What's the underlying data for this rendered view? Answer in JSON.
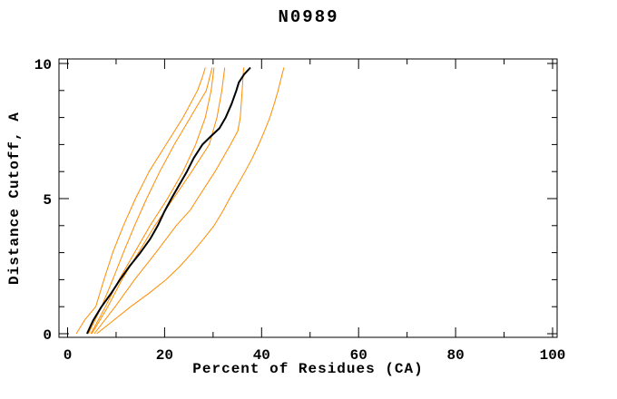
{
  "figure": {
    "title": "N0989",
    "background_color": "#ffffff",
    "axis_color": "#000000",
    "model_line_color": "#ff8c00",
    "reference_line_color": "#000000"
  },
  "chart_data": {
    "type": "line",
    "title": "N0989",
    "xlabel": "Percent of Residues (CA)",
    "ylabel": "Distance Cutoff, A",
    "xlim": [
      0,
      100
    ],
    "ylim": [
      0,
      10
    ],
    "x_major_ticks": [
      0,
      20,
      40,
      60,
      80,
      100
    ],
    "x_minor_ticks": [
      10,
      30,
      50,
      70,
      90
    ],
    "y_major_ticks": [
      0,
      5,
      10
    ],
    "y_minor_ticks": [
      1,
      2,
      3,
      4,
      6,
      7,
      8,
      9
    ],
    "grid": false,
    "legend": false,
    "point_format": [
      "distance_cutoff_A",
      "percent_residues"
    ],
    "series": [
      {
        "name": "orange-model-1",
        "color": "#ff8c00",
        "points": [
          [
            0,
            1.8
          ],
          [
            0.5,
            3.5
          ],
          [
            1,
            5.8
          ],
          [
            2,
            7.5
          ],
          [
            3,
            9.3
          ],
          [
            4,
            11.5
          ],
          [
            5,
            14.0
          ],
          [
            6,
            16.8
          ],
          [
            7,
            20.3
          ],
          [
            8,
            23.8
          ],
          [
            9,
            26.8
          ],
          [
            9.5,
            27.8
          ],
          [
            9.85,
            28.4
          ]
        ]
      },
      {
        "name": "orange-model-2",
        "color": "#ff8c00",
        "points": [
          [
            0,
            4.3
          ],
          [
            1,
            7.0
          ],
          [
            2,
            9.3
          ],
          [
            3,
            11.5
          ],
          [
            4,
            13.8
          ],
          [
            5,
            16.3
          ],
          [
            6,
            19.0
          ],
          [
            7,
            22.0
          ],
          [
            8,
            25.3
          ],
          [
            9,
            28.6
          ],
          [
            9.85,
            29.8
          ]
        ]
      },
      {
        "name": "orange-model-3",
        "color": "#ff8c00",
        "points": [
          [
            0,
            4.8
          ],
          [
            1,
            7.8
          ],
          [
            2,
            10.6
          ],
          [
            3,
            13.8
          ],
          [
            4,
            17.0
          ],
          [
            5,
            20.6
          ],
          [
            6,
            23.8
          ],
          [
            7,
            26.4
          ],
          [
            8,
            28.4
          ],
          [
            9,
            29.6
          ],
          [
            9.85,
            30.2
          ]
        ]
      },
      {
        "name": "orange-model-4",
        "color": "#ff8c00",
        "points": [
          [
            0,
            5.0
          ],
          [
            1,
            8.3
          ],
          [
            2,
            11.2
          ],
          [
            3,
            14.6
          ],
          [
            4,
            18.0
          ],
          [
            5,
            21.8
          ],
          [
            6,
            25.6
          ],
          [
            7,
            29.2
          ],
          [
            7.5,
            30.0
          ],
          [
            8,
            30.8
          ],
          [
            9,
            31.8
          ],
          [
            9.85,
            32.4
          ]
        ]
      },
      {
        "name": "orange-model-5",
        "color": "#ff8c00",
        "points": [
          [
            0,
            5.5
          ],
          [
            1,
            9.8
          ],
          [
            2,
            13.8
          ],
          [
            3,
            18.2
          ],
          [
            4,
            22.4
          ],
          [
            4.6,
            25.4
          ],
          [
            5,
            26.8
          ],
          [
            6,
            30.4
          ],
          [
            7,
            33.6
          ],
          [
            7.5,
            35.1
          ],
          [
            8,
            35.6
          ],
          [
            9,
            36.0
          ],
          [
            9.85,
            36.3
          ]
        ]
      },
      {
        "name": "orange-model-6",
        "color": "#ff8c00",
        "points": [
          [
            0,
            6.0
          ],
          [
            0.5,
            9.5
          ],
          [
            1,
            13.0
          ],
          [
            1.5,
            16.8
          ],
          [
            2,
            20.3
          ],
          [
            2.5,
            23.2
          ],
          [
            3,
            25.7
          ],
          [
            3.5,
            28.0
          ],
          [
            4,
            30.2
          ],
          [
            4.5,
            31.9
          ],
          [
            5,
            33.4
          ],
          [
            5.5,
            35.0
          ],
          [
            6,
            36.6
          ],
          [
            6.5,
            38.1
          ],
          [
            7,
            39.4
          ],
          [
            7.5,
            40.6
          ],
          [
            8,
            41.7
          ],
          [
            8.5,
            42.6
          ],
          [
            9,
            43.4
          ],
          [
            9.5,
            44.1
          ],
          [
            9.85,
            44.6
          ]
        ]
      },
      {
        "name": "black-reference",
        "color": "#000000",
        "points": [
          [
            0,
            4.0
          ],
          [
            0.5,
            5.3
          ],
          [
            1,
            7.0
          ],
          [
            1.5,
            9.0
          ],
          [
            2,
            10.8
          ],
          [
            2.5,
            12.8
          ],
          [
            3,
            15.0
          ],
          [
            3.5,
            17.0
          ],
          [
            4,
            18.6
          ],
          [
            4.5,
            19.9
          ],
          [
            5,
            21.4
          ],
          [
            5.5,
            23.0
          ],
          [
            6,
            24.6
          ],
          [
            6.5,
            26.0
          ],
          [
            7,
            27.8
          ],
          [
            7.3,
            29.5
          ],
          [
            7.6,
            31.3
          ],
          [
            8,
            32.6
          ],
          [
            8.5,
            33.8
          ],
          [
            9,
            34.8
          ],
          [
            9.3,
            35.3
          ],
          [
            9.6,
            36.4
          ],
          [
            9.85,
            37.7
          ]
        ]
      }
    ]
  }
}
